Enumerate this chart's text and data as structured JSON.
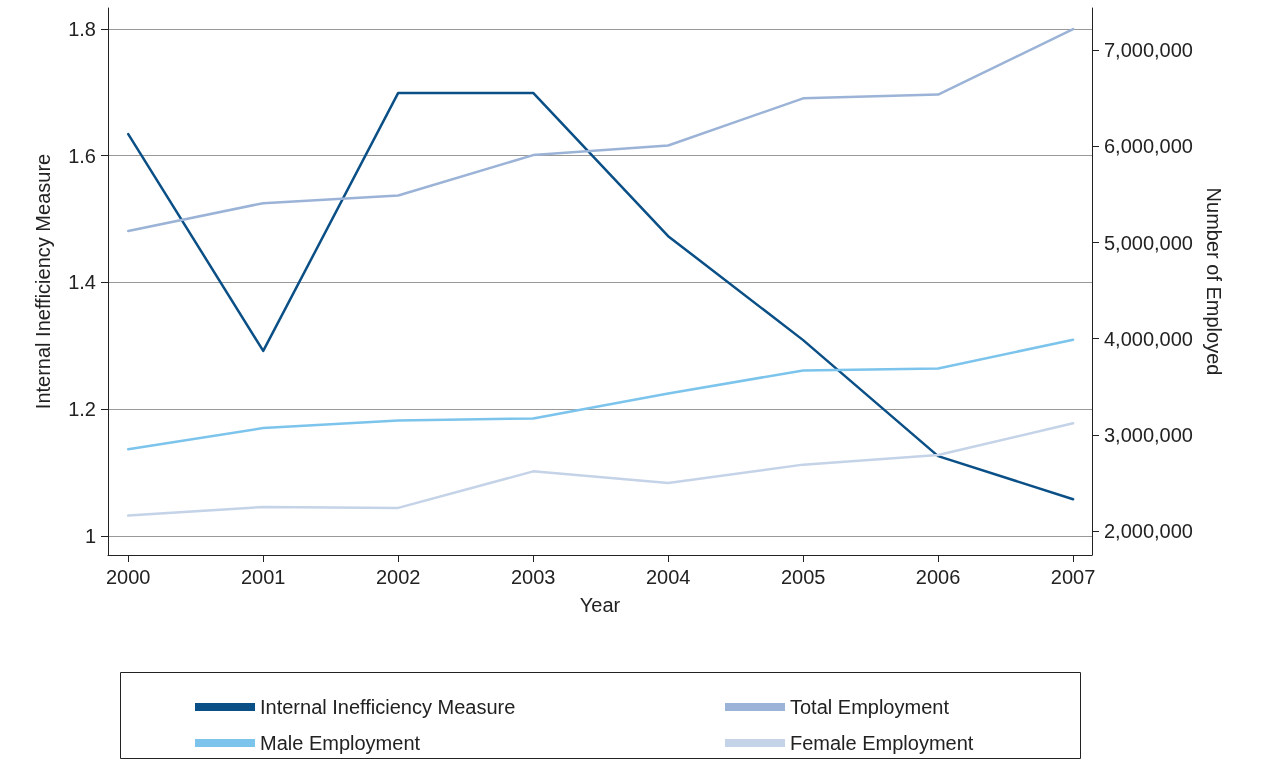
{
  "chart_data": {
    "type": "line",
    "xlabel": "Year",
    "ylabel": "Internal Inefficiency Measure",
    "y2label": "Number of Employed",
    "x": [
      2000,
      2001,
      2002,
      2003,
      2004,
      2005,
      2006,
      2007
    ],
    "series": [
      {
        "name": "Internal Inefficiency Measure",
        "color": "#0a4f86",
        "values": [
          1.634,
          1.292,
          1.699,
          1.699,
          1.473,
          1.309,
          1.126,
          1.058
        ]
      },
      {
        "name": "Total Employment",
        "color": "#9bb3d6",
        "axis": "y2",
        "values": [
          5120000,
          5410000,
          5490000,
          5910000,
          6010000,
          6500000,
          6540000,
          7220000
        ]
      },
      {
        "name": "Male Employment",
        "color": "#7cc4ec",
        "axis": "y2",
        "values": [
          2850000,
          3070000,
          3150000,
          3170000,
          3430000,
          3670000,
          3690000,
          3990000
        ]
      },
      {
        "name": "Female Employment",
        "color": "#c5d3e8",
        "axis": "y2",
        "values": [
          2160000,
          2250000,
          2240000,
          2620000,
          2500000,
          2690000,
          2790000,
          3120000
        ]
      }
    ],
    "xlim": [
      1999.85,
      2007.14
    ],
    "xticks": [
      2000,
      2001,
      2002,
      2003,
      2004,
      2005,
      2006,
      2007
    ],
    "ylim": [
      0.97,
      1.833
    ],
    "yticks": [
      1,
      1.2,
      1.4,
      1.6,
      1.8
    ],
    "y2lim": [
      1750000,
      7440000
    ],
    "y2ticks": [
      {
        "value": 2000000,
        "label": "2,000,000"
      },
      {
        "value": 3000000,
        "label": "3,000,000"
      },
      {
        "value": 4000000,
        "label": "4,000,000"
      },
      {
        "value": 5000000,
        "label": "5,000,000"
      },
      {
        "value": 6000000,
        "label": "6,000,000"
      },
      {
        "value": 7000000,
        "label": "7,000,000"
      }
    ],
    "grid": "y",
    "legend": "bottom",
    "marker": "none",
    "line_style": "solid"
  }
}
